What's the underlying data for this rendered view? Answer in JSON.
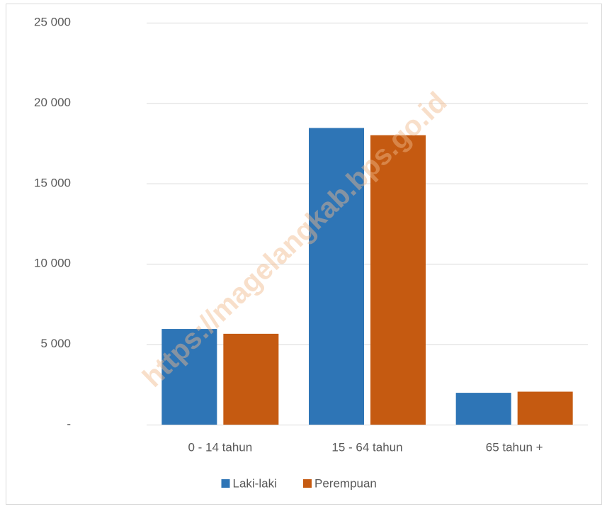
{
  "chart_data": {
    "type": "bar",
    "watermark": "https://magelangkab.bps.go.id",
    "categories": [
      "0 - 14 tahun",
      "15 - 64 tahun",
      "65 tahun  +"
    ],
    "series": [
      {
        "name": "Laki-laki",
        "color": "#2e75b6",
        "values": [
          5950,
          18450,
          1980
        ]
      },
      {
        "name": "Perempuan",
        "color": "#c55a11",
        "values": [
          5650,
          18000,
          2050
        ]
      }
    ],
    "ylim": [
      0,
      25000
    ],
    "yticks": [
      {
        "value": 0,
        "label": "-"
      },
      {
        "value": 5000,
        "label": "5 000"
      },
      {
        "value": 10000,
        "label": "10 000"
      },
      {
        "value": 15000,
        "label": "15 000"
      },
      {
        "value": 20000,
        "label": "20 000"
      },
      {
        "value": 25000,
        "label": "25 000"
      }
    ],
    "grid": true,
    "legend": "bottom"
  }
}
